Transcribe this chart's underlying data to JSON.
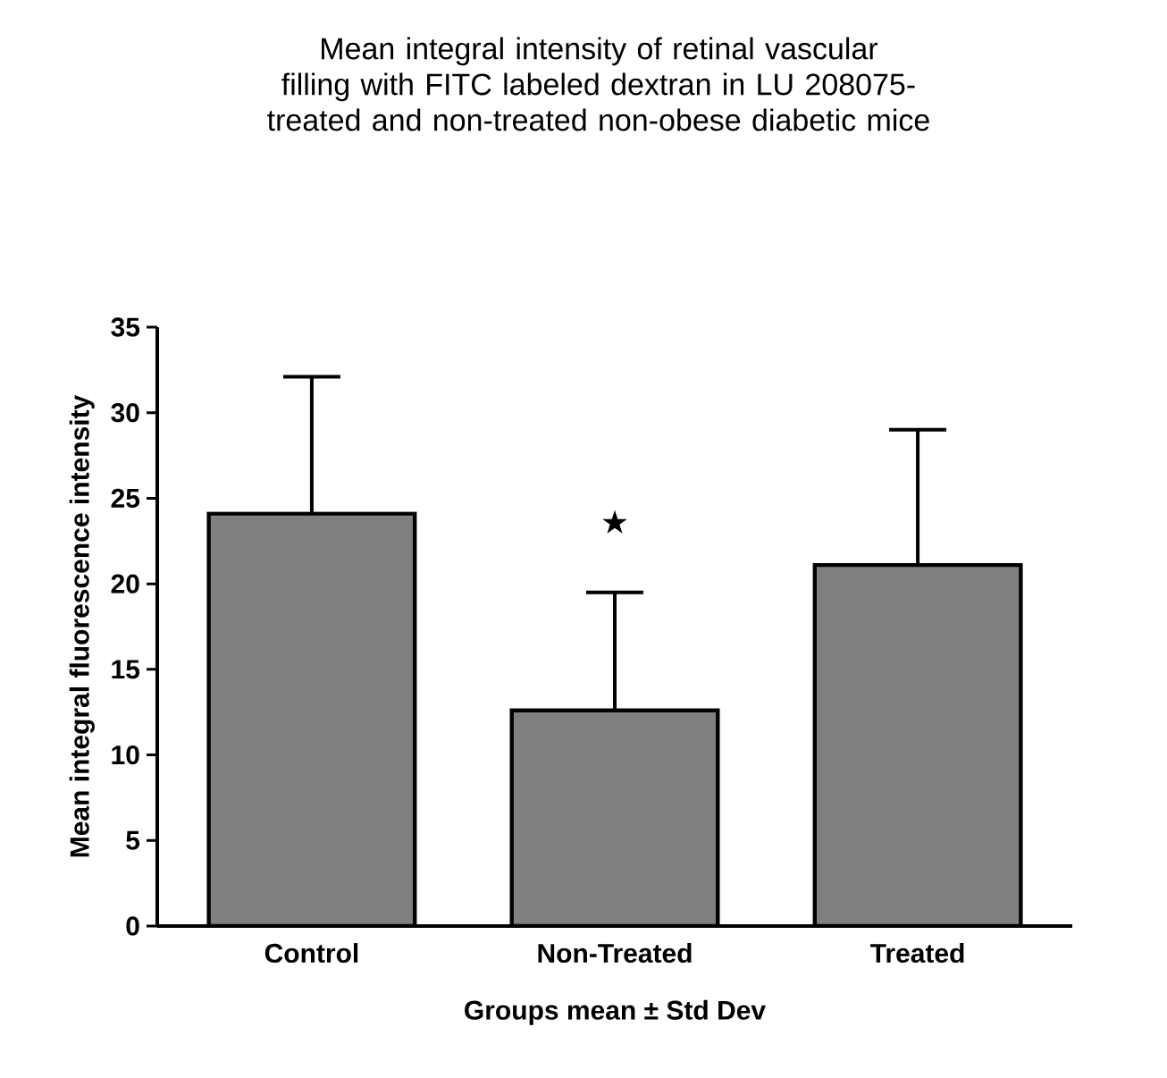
{
  "chart_data": {
    "type": "bar",
    "title": "Mean integral intensity of retinal vascular filling with FITC labeled dextran in LU 208075-treated and non-treated non-obese diabetic mice",
    "xlabel": "Groups mean ± Std Dev",
    "ylabel": "Mean integral fluorescence intensity",
    "categories": [
      "Control",
      "Non-Treated",
      "Treated"
    ],
    "values": [
      24.1,
      12.6,
      21.1
    ],
    "errors": [
      [
        24.1,
        32.1
      ],
      [
        12.6,
        19.5
      ],
      [
        21.1,
        29
      ]
    ],
    "color": "#808080",
    "ylim": [
      0,
      35
    ],
    "yticks": [
      0,
      5,
      10,
      15,
      20,
      25,
      30,
      35
    ],
    "annotations": [
      "★"
    ],
    "grid": false
  }
}
